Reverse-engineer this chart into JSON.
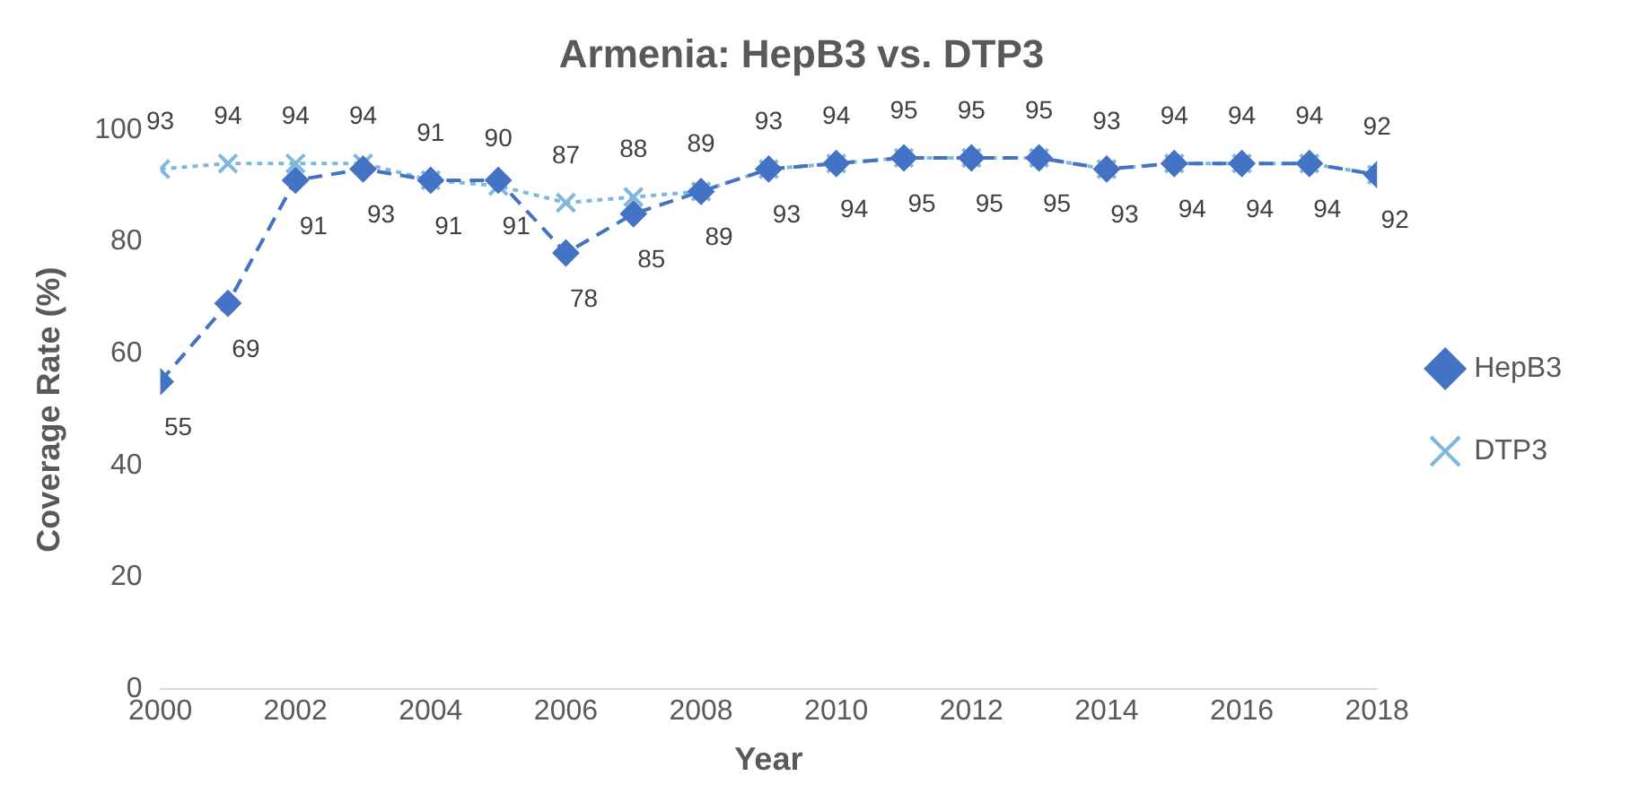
{
  "chart_data": {
    "type": "line",
    "title": "Armenia: HepB3 vs. DTP3",
    "xlabel": "Year",
    "ylabel": "Coverage Rate (%)",
    "x": [
      2000,
      2001,
      2002,
      2003,
      2004,
      2005,
      2006,
      2007,
      2008,
      2009,
      2010,
      2011,
      2012,
      2013,
      2014,
      2015,
      2016,
      2017,
      2018
    ],
    "series": [
      {
        "name": "HepB3",
        "color": "#4472c4",
        "marker": "diamond",
        "line_style": "dashed",
        "values": [
          55,
          69,
          91,
          93,
          91,
          91,
          78,
          85,
          89,
          93,
          94,
          95,
          95,
          95,
          93,
          94,
          94,
          94,
          92
        ]
      },
      {
        "name": "DTP3",
        "color": "#7fb8dc",
        "marker": "cross",
        "line_style": "dotted",
        "values": [
          93,
          94,
          94,
          94,
          91,
          90,
          87,
          88,
          89,
          93,
          94,
          95,
          95,
          95,
          93,
          94,
          94,
          94,
          92
        ]
      }
    ],
    "xlim": [
      2000,
      2018
    ],
    "xticks": [
      2000,
      2002,
      2004,
      2006,
      2008,
      2010,
      2012,
      2014,
      2016,
      2018
    ],
    "ylim": [
      0,
      100
    ],
    "yticks": [
      0,
      20,
      40,
      60,
      80,
      100
    ],
    "grid": false,
    "legend": "right",
    "data_labels": true
  }
}
